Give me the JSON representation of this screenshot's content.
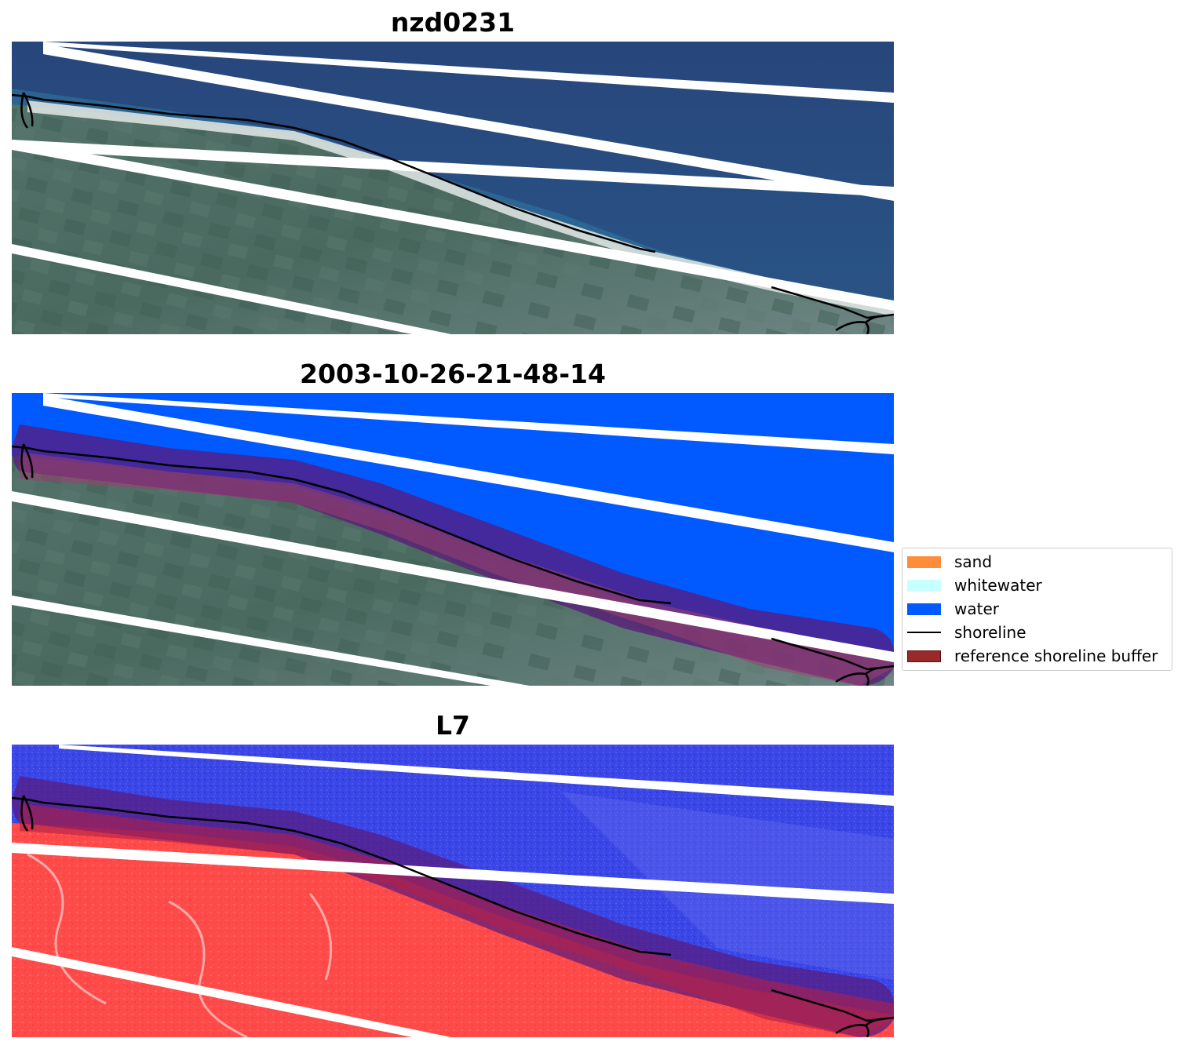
{
  "titles": {
    "top": "nzd0231",
    "middle": "2003-10-26-21-48-14",
    "bottom": "L7"
  },
  "legend": {
    "items": [
      {
        "label": "sand",
        "color": "#ff8c3a"
      },
      {
        "label": "whitewater",
        "color": "#c8ffff"
      },
      {
        "label": "water",
        "color": "#005aff"
      },
      {
        "label": "shoreline",
        "color": "#000000"
      },
      {
        "label": "reference shoreline buffer",
        "color": "#9a2a2a"
      }
    ]
  },
  "colors": {
    "ocean_rgb": "#25457a",
    "land_rgb": "#4b6a62",
    "beach": "#e4eae6",
    "water_class": "#005aff",
    "buffer": "#8a2a6a",
    "ndwi_water": "#3b46e6",
    "ndwi_land": "#ff4a4a",
    "stripe": "#ffffff",
    "shoreline": "#000000"
  }
}
